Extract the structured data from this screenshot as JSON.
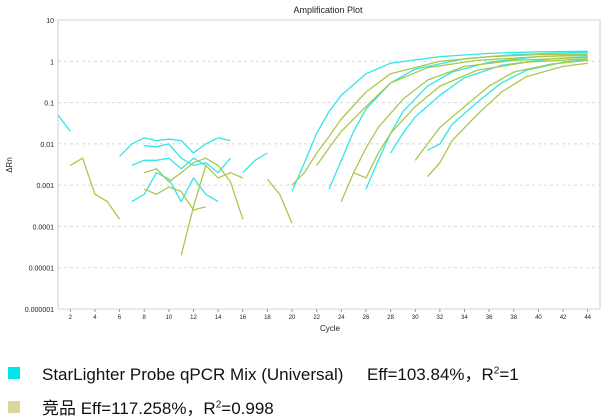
{
  "chart_data": {
    "type": "line",
    "title": "Amplification Plot",
    "xlabel": "Cycle",
    "ylabel": "ΔRn",
    "y_scale": "log",
    "xlim": [
      1,
      45
    ],
    "ylim": [
      1e-06,
      10
    ],
    "x_ticks": [
      2,
      4,
      6,
      8,
      10,
      12,
      14,
      16,
      18,
      20,
      22,
      24,
      26,
      28,
      30,
      32,
      34,
      36,
      38,
      40,
      42,
      44
    ],
    "y_ticks": [
      {
        "value": 10,
        "label": "10"
      },
      {
        "value": 1,
        "label": "1"
      },
      {
        "value": 0.1,
        "label": "0.1"
      },
      {
        "value": 0.01,
        "label": "0.01"
      },
      {
        "value": 0.001,
        "label": "0.001"
      },
      {
        "value": 0.0001,
        "label": "0.0001"
      },
      {
        "value": 1e-05,
        "label": "0.00001"
      },
      {
        "value": 1e-06,
        "label": "0.000001"
      }
    ],
    "grid": "horizontal dashed",
    "series_colors": {
      "starlighter": "#33e6e6",
      "competitor": "#a9c94a"
    },
    "series": [
      {
        "group": "starlighter",
        "points": [
          [
            20,
            0.0007
          ],
          [
            21,
            0.0035
          ],
          [
            22,
            0.018
          ],
          [
            23,
            0.06
          ],
          [
            24,
            0.15
          ],
          [
            26,
            0.5
          ],
          [
            28,
            0.9
          ],
          [
            32,
            1.3
          ],
          [
            36,
            1.55
          ],
          [
            40,
            1.7
          ],
          [
            44,
            1.75
          ]
        ]
      },
      {
        "group": "starlighter",
        "points": [
          [
            23,
            0.0008
          ],
          [
            24,
            0.004
          ],
          [
            25,
            0.02
          ],
          [
            26,
            0.07
          ],
          [
            28,
            0.3
          ],
          [
            30,
            0.65
          ],
          [
            34,
            1.15
          ],
          [
            38,
            1.45
          ],
          [
            42,
            1.6
          ],
          [
            44,
            1.65
          ]
        ]
      },
      {
        "group": "starlighter",
        "points": [
          [
            26,
            0.0008
          ],
          [
            27,
            0.004
          ],
          [
            28,
            0.018
          ],
          [
            29,
            0.06
          ],
          [
            31,
            0.25
          ],
          [
            33,
            0.55
          ],
          [
            36,
            0.95
          ],
          [
            40,
            1.3
          ],
          [
            44,
            1.45
          ]
        ]
      },
      {
        "group": "starlighter",
        "points": [
          [
            28,
            0.006
          ],
          [
            29,
            0.018
          ],
          [
            30,
            0.045
          ],
          [
            32,
            0.15
          ],
          [
            34,
            0.4
          ],
          [
            37,
            0.8
          ],
          [
            41,
            1.15
          ],
          [
            44,
            1.3
          ]
        ]
      },
      {
        "group": "starlighter",
        "points": [
          [
            31,
            0.007
          ],
          [
            32,
            0.01
          ],
          [
            33,
            0.03
          ],
          [
            35,
            0.1
          ],
          [
            37,
            0.3
          ],
          [
            39,
            0.6
          ],
          [
            42,
            0.95
          ],
          [
            44,
            1.1
          ]
        ]
      },
      {
        "group": "competitor",
        "points": [
          [
            20,
            0.001
          ],
          [
            21,
            0.002
          ],
          [
            22,
            0.006
          ],
          [
            23,
            0.015
          ],
          [
            24,
            0.04
          ],
          [
            26,
            0.18
          ],
          [
            28,
            0.5
          ],
          [
            32,
            1.0
          ],
          [
            36,
            1.3
          ],
          [
            40,
            1.45
          ],
          [
            44,
            1.5
          ]
        ]
      },
      {
        "group": "competitor",
        "points": [
          [
            22,
            0.003
          ],
          [
            23,
            0.008
          ],
          [
            24,
            0.02
          ],
          [
            26,
            0.08
          ],
          [
            28,
            0.3
          ],
          [
            31,
            0.7
          ],
          [
            35,
            1.05
          ],
          [
            40,
            1.3
          ],
          [
            44,
            1.4
          ]
        ]
      },
      {
        "group": "competitor",
        "points": [
          [
            24,
            0.0004
          ],
          [
            25,
            0.002
          ],
          [
            26,
            0.008
          ],
          [
            27,
            0.025
          ],
          [
            29,
            0.12
          ],
          [
            31,
            0.35
          ],
          [
            34,
            0.75
          ],
          [
            38,
            1.05
          ],
          [
            44,
            1.25
          ]
        ]
      },
      {
        "group": "competitor",
        "points": [
          [
            25,
            0.002
          ],
          [
            26,
            0.0015
          ],
          [
            27,
            0.006
          ],
          [
            28,
            0.018
          ],
          [
            30,
            0.08
          ],
          [
            32,
            0.25
          ],
          [
            35,
            0.6
          ],
          [
            39,
            0.95
          ],
          [
            44,
            1.15
          ]
        ]
      },
      {
        "group": "competitor",
        "points": [
          [
            30,
            0.004
          ],
          [
            31,
            0.01
          ],
          [
            32,
            0.025
          ],
          [
            34,
            0.08
          ],
          [
            36,
            0.25
          ],
          [
            38,
            0.55
          ],
          [
            41,
            0.85
          ],
          [
            44,
            1.05
          ]
        ]
      },
      {
        "group": "competitor",
        "points": [
          [
            31,
            0.0016
          ],
          [
            32,
            0.0035
          ],
          [
            33,
            0.012
          ],
          [
            35,
            0.05
          ],
          [
            37,
            0.18
          ],
          [
            39,
            0.42
          ],
          [
            42,
            0.75
          ],
          [
            44,
            0.9
          ]
        ]
      },
      {
        "group": "starlighter",
        "points": [
          [
            1,
            0.05
          ],
          [
            2,
            0.02
          ]
        ]
      },
      {
        "group": "starlighter",
        "points": [
          [
            6,
            0.005
          ],
          [
            7,
            0.01
          ],
          [
            8,
            0.014
          ],
          [
            9,
            0.012
          ],
          [
            10,
            0.013
          ],
          [
            11,
            0.012
          ],
          [
            12,
            0.006
          ],
          [
            13,
            0.01
          ],
          [
            14,
            0.014
          ],
          [
            15,
            0.012
          ]
        ]
      },
      {
        "group": "starlighter",
        "points": [
          [
            7,
            0.003
          ],
          [
            8,
            0.004
          ],
          [
            9,
            0.004
          ],
          [
            10,
            0.0045
          ],
          [
            11,
            0.0025
          ],
          [
            12,
            0.0045
          ],
          [
            13,
            0.003
          ]
        ]
      },
      {
        "group": "starlighter",
        "points": [
          [
            7,
            0.0004
          ],
          [
            8,
            0.0006
          ],
          [
            9,
            0.002
          ],
          [
            10,
            0.0014
          ],
          [
            11,
            0.0004
          ],
          [
            12,
            0.0015
          ],
          [
            13,
            0.0006
          ],
          [
            14,
            0.0004
          ]
        ]
      },
      {
        "group": "starlighter",
        "points": [
          [
            8,
            0.009
          ],
          [
            9,
            0.0085
          ],
          [
            10,
            0.01
          ],
          [
            11,
            0.0045
          ],
          [
            12,
            0.003
          ],
          [
            13,
            0.0035
          ],
          [
            14,
            0.002
          ],
          [
            15,
            0.0045
          ]
        ]
      },
      {
        "group": "starlighter",
        "points": [
          [
            16,
            0.002
          ],
          [
            17,
            0.004
          ],
          [
            18,
            0.006
          ]
        ]
      },
      {
        "group": "competitor",
        "points": [
          [
            2,
            0.003
          ],
          [
            3,
            0.0045
          ],
          [
            4,
            0.0006
          ],
          [
            5,
            0.0004
          ],
          [
            6,
            0.00015
          ]
        ]
      },
      {
        "group": "competitor",
        "points": [
          [
            8,
            0.002
          ],
          [
            9,
            0.0025
          ],
          [
            10,
            0.0012
          ],
          [
            11,
            0.002
          ],
          [
            12,
            0.0035
          ],
          [
            13,
            0.0045
          ],
          [
            14,
            0.003
          ],
          [
            15,
            0.0012
          ],
          [
            16,
            0.00015
          ]
        ]
      },
      {
        "group": "competitor",
        "points": [
          [
            8,
            0.0008
          ],
          [
            9,
            0.0006
          ],
          [
            10,
            0.0009
          ],
          [
            11,
            0.0007
          ],
          [
            12,
            0.00025
          ],
          [
            13,
            0.0003
          ]
        ]
      },
      {
        "group": "competitor",
        "points": [
          [
            11,
            2e-05
          ],
          [
            12,
            0.0003
          ],
          [
            13,
            0.003
          ],
          [
            14,
            0.0015
          ],
          [
            15,
            0.002
          ],
          [
            16,
            0.0015
          ]
        ]
      },
      {
        "group": "competitor",
        "points": [
          [
            18,
            0.0014
          ],
          [
            19,
            0.0006
          ],
          [
            20,
            0.00012
          ]
        ]
      }
    ]
  },
  "legend": {
    "item1": {
      "color": "#00e5e5",
      "label_main": "StarLighter Probe qPCR Mix (Universal)     Eff=103.84%，R",
      "sup": "2",
      "label_tail": "=1"
    },
    "item2": {
      "color": "#d9d79a",
      "label_main": "竞品 Eff=117.258%，R",
      "sup": "2",
      "label_tail": "=0.998"
    }
  }
}
